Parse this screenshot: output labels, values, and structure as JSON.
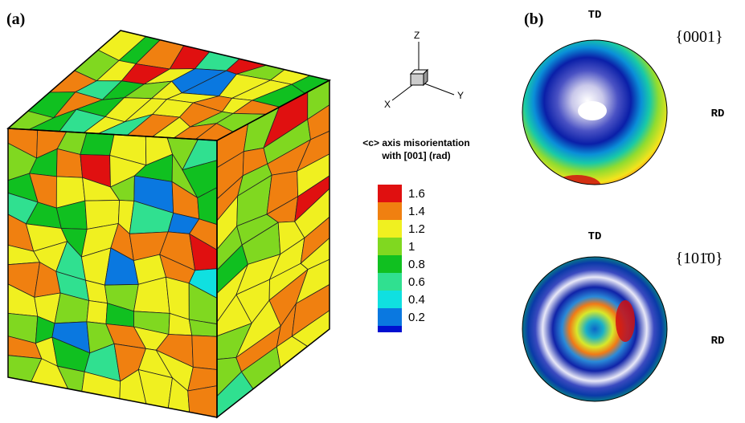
{
  "figure": {
    "panel_a": {
      "label": "(a)",
      "axes": {
        "z": "Z",
        "y": "Y",
        "x": "X"
      },
      "colorbar": {
        "title": [
          "<c> axis misorientation",
          "with [001] (rad)"
        ],
        "labels": [
          "1.6",
          "1.4",
          "1.2",
          "1",
          "0.8",
          "0.6",
          "0.4",
          "0.2"
        ]
      }
    },
    "panel_b": {
      "label": "(b)",
      "pole_figures": [
        {
          "plane": "{0001}",
          "top": "TD",
          "right": "RD"
        },
        {
          "plane": "{101̄0}",
          "top": "TD",
          "right": "RD"
        }
      ]
    }
  }
}
